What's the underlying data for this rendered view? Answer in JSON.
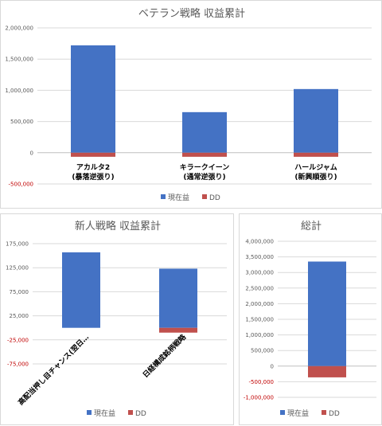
{
  "chart_data": [
    {
      "type": "bar",
      "stacked": true,
      "title": "ベテラン戦略 収益累計",
      "categories": [
        "アカルタ2\n(暴落逆張り)",
        "キラークイーン\n(通常逆張り)",
        "ハールジャム\n(新興順張り)"
      ],
      "series": [
        {
          "name": "現在益",
          "values": [
            1720000,
            650000,
            1020000
          ],
          "color": "#4472c4"
        },
        {
          "name": "DD",
          "values": [
            -65000,
            -65000,
            -65000
          ],
          "color": "#c0504d"
        }
      ],
      "ylim": [
        -500000,
        2000000
      ],
      "yticks": [
        2000000,
        1500000,
        1000000,
        500000,
        0,
        -500000
      ],
      "ytick_labels": [
        "2,000,000",
        "1,500,000",
        "1,000,000",
        "500,000",
        "0",
        "-500,000"
      ],
      "grid": true,
      "legend": "bottom"
    },
    {
      "type": "bar",
      "stacked": true,
      "title": "新人戦略 収益累計",
      "categories": [
        "高配当押し目チャンス(翌日…",
        "日経構成銘柄戦略"
      ],
      "series": [
        {
          "name": "現在益",
          "values": [
            157000,
            123000
          ],
          "color": "#4472c4"
        },
        {
          "name": "DD",
          "values": [
            0,
            -10000
          ],
          "color": "#c0504d"
        }
      ],
      "ylim": [
        -75000,
        175000
      ],
      "yticks": [
        175000,
        125000,
        75000,
        25000,
        -25000,
        -75000
      ],
      "ytick_labels": [
        "175,000",
        "125,000",
        "75,000",
        "25,000",
        "-25,000",
        "-75,000"
      ],
      "grid": true,
      "legend": "bottom"
    },
    {
      "type": "bar",
      "stacked": true,
      "title": "総計",
      "categories": [
        ""
      ],
      "series": [
        {
          "name": "現在益",
          "values": [
            3350000
          ],
          "color": "#4472c4"
        },
        {
          "name": "DD",
          "values": [
            -360000
          ],
          "color": "#c0504d"
        }
      ],
      "ylim": [
        -1000000,
        4000000
      ],
      "yticks": [
        4000000,
        3500000,
        3000000,
        2500000,
        2000000,
        1500000,
        1000000,
        500000,
        0,
        -500000,
        -1000000
      ],
      "ytick_labels": [
        "4,000,000",
        "3,500,000",
        "3,000,000",
        "2,500,000",
        "2,000,000",
        "1,500,000",
        "1,000,000",
        "500,000",
        "0",
        "-500,000",
        "-1,000,000"
      ],
      "grid": true,
      "legend": "bottom"
    }
  ]
}
